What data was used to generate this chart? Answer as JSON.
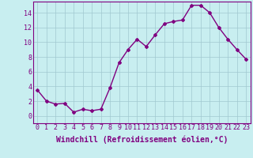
{
  "x": [
    0,
    1,
    2,
    3,
    4,
    5,
    6,
    7,
    8,
    9,
    10,
    11,
    12,
    13,
    14,
    15,
    16,
    17,
    18,
    19,
    20,
    21,
    22,
    23
  ],
  "y": [
    3.5,
    2.0,
    1.6,
    1.7,
    0.5,
    0.9,
    0.7,
    0.9,
    3.8,
    7.2,
    9.0,
    10.4,
    9.4,
    11.0,
    12.5,
    12.8,
    13.0,
    15.0,
    15.0,
    14.0,
    12.0,
    10.4,
    9.0,
    7.7
  ],
  "line_color": "#800080",
  "marker": "D",
  "marker_size": 2.0,
  "bg_color": "#c8eef0",
  "grid_color": "#a0c8d0",
  "xlabel": "Windchill (Refroidissement éolien,°C)",
  "ylim": [
    -1,
    15.5
  ],
  "xlim": [
    -0.5,
    23.5
  ],
  "yticks": [
    0,
    2,
    4,
    6,
    8,
    10,
    12,
    14
  ],
  "xticks": [
    0,
    1,
    2,
    3,
    4,
    5,
    6,
    7,
    8,
    9,
    10,
    11,
    12,
    13,
    14,
    15,
    16,
    17,
    18,
    19,
    20,
    21,
    22,
    23
  ],
  "tick_fontsize": 6,
  "xlabel_fontsize": 7,
  "line_width": 1.0
}
